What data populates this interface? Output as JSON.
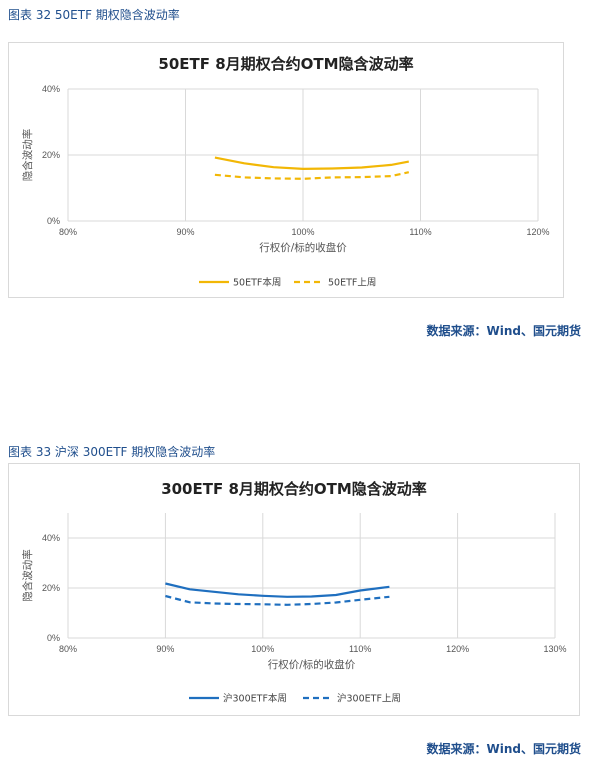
{
  "figures": [
    {
      "caption": "图表 32 50ETF 期权隐含波动率",
      "source": "数据来源：Wind、国元期货"
    },
    {
      "caption": "图表 33 沪深 300ETF 期权隐含波动率",
      "source": "数据来源：Wind、国元期货"
    }
  ],
  "colors": {
    "caption": "#1f4e8c",
    "gold": "#F2B705",
    "blue": "#1F6FBF"
  },
  "chart_data": [
    {
      "type": "line",
      "title": "50ETF 8月期权合约OTM隐含波动率",
      "xlabel": "行权价/标的收盘价",
      "ylabel": "隐含波动率",
      "xlim": [
        80,
        120
      ],
      "ylim": [
        0,
        40
      ],
      "x_ticks": [
        "80%",
        "90%",
        "100%",
        "110%",
        "120%"
      ],
      "y_ticks": [
        "0%",
        "20%",
        "40%"
      ],
      "grid": true,
      "legend_position": "bottom",
      "series": [
        {
          "name": "50ETF本周",
          "style": "solid",
          "color": "#F2B705",
          "x": [
            92.5,
            95,
            97.5,
            100,
            102.5,
            105,
            107.5,
            109
          ],
          "y": [
            19.2,
            17.5,
            16.3,
            15.8,
            15.9,
            16.2,
            17.0,
            18.0
          ]
        },
        {
          "name": "50ETF上周",
          "style": "dashed",
          "color": "#F2B705",
          "x": [
            92.5,
            95,
            97.5,
            100,
            102.5,
            105,
            107.5,
            109
          ],
          "y": [
            14.0,
            13.2,
            12.9,
            12.8,
            13.2,
            13.3,
            13.6,
            14.8
          ]
        }
      ]
    },
    {
      "type": "line",
      "title": "300ETF 8月期权合约OTM隐含波动率",
      "xlabel": "行权价/标的收盘价",
      "ylabel": "隐含波动率",
      "xlim": [
        80,
        130
      ],
      "ylim": [
        0,
        50
      ],
      "x_ticks": [
        "80%",
        "90%",
        "100%",
        "110%",
        "120%",
        "130%"
      ],
      "y_ticks": [
        "0%",
        "20%",
        "40%"
      ],
      "grid": true,
      "legend_position": "bottom",
      "series": [
        {
          "name": "沪300ETF本周",
          "style": "solid",
          "color": "#1F6FBF",
          "x": [
            90,
            92.5,
            95,
            97.5,
            100,
            102.5,
            105,
            107.5,
            110,
            113
          ],
          "y": [
            21.8,
            19.5,
            18.5,
            17.5,
            16.9,
            16.5,
            16.6,
            17.2,
            19.0,
            20.5
          ]
        },
        {
          "name": "沪300ETF上周",
          "style": "dashed",
          "color": "#1F6FBF",
          "x": [
            90,
            92.5,
            95,
            97.5,
            100,
            102.5,
            105,
            107.5,
            110,
            113
          ],
          "y": [
            16.8,
            14.3,
            13.8,
            13.6,
            13.5,
            13.3,
            13.6,
            14.2,
            15.3,
            16.5
          ]
        }
      ]
    }
  ]
}
